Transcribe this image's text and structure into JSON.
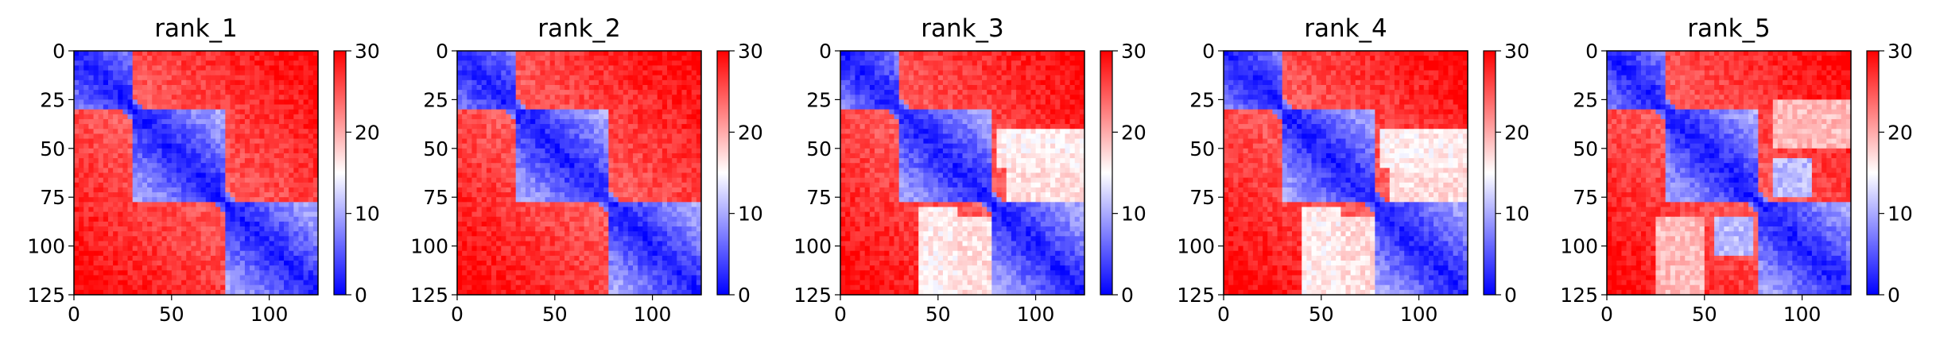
{
  "chart_data": [
    {
      "type": "heatmap",
      "title": "rank_1",
      "n": 125,
      "xticks": [
        0,
        50,
        100
      ],
      "yticks": [
        0,
        25,
        50,
        75,
        100,
        125
      ],
      "xlim": [
        0,
        125
      ],
      "ylim": [
        125,
        0
      ],
      "colorbar": {
        "min": 0,
        "max": 30,
        "ticks": [
          0,
          10,
          20,
          30
        ]
      },
      "colormap": [
        "#0000ff",
        "#ffffff",
        "#ff0000"
      ],
      "domains": [
        [
          0,
          30
        ],
        [
          30,
          78
        ],
        [
          78,
          125
        ]
      ],
      "pattern": "strong-offdiag"
    },
    {
      "type": "heatmap",
      "title": "rank_2",
      "n": 125,
      "xticks": [
        0,
        50,
        100
      ],
      "yticks": [
        0,
        25,
        50,
        75,
        100,
        125
      ],
      "xlim": [
        0,
        125
      ],
      "ylim": [
        125,
        0
      ],
      "colorbar": {
        "min": 0,
        "max": 30,
        "ticks": [
          0,
          10,
          20,
          30
        ]
      },
      "colormap": [
        "#0000ff",
        "#ffffff",
        "#ff0000"
      ],
      "domains": [
        [
          0,
          30
        ],
        [
          30,
          78
        ],
        [
          78,
          125
        ]
      ],
      "pattern": "strong-offdiag"
    },
    {
      "type": "heatmap",
      "title": "rank_3",
      "n": 125,
      "xticks": [
        0,
        50,
        100
      ],
      "yticks": [
        0,
        25,
        50,
        75,
        100,
        125
      ],
      "xlim": [
        0,
        125
      ],
      "ylim": [
        125,
        0
      ],
      "colorbar": {
        "min": 0,
        "max": 30,
        "ticks": [
          0,
          10,
          20,
          30
        ]
      },
      "colormap": [
        "#0000ff",
        "#ffffff",
        "#ff0000"
      ],
      "domains": [
        [
          0,
          30
        ],
        [
          30,
          78
        ],
        [
          78,
          125
        ]
      ],
      "pattern": "pale-lower"
    },
    {
      "type": "heatmap",
      "title": "rank_4",
      "n": 125,
      "xticks": [
        0,
        50,
        100
      ],
      "yticks": [
        0,
        25,
        50,
        75,
        100,
        125
      ],
      "xlim": [
        0,
        125
      ],
      "ylim": [
        125,
        0
      ],
      "colorbar": {
        "min": 0,
        "max": 30,
        "ticks": [
          0,
          10,
          20,
          30
        ]
      },
      "colormap": [
        "#0000ff",
        "#ffffff",
        "#ff0000"
      ],
      "domains": [
        [
          0,
          30
        ],
        [
          30,
          78
        ],
        [
          78,
          125
        ]
      ],
      "pattern": "pale-lower"
    },
    {
      "type": "heatmap",
      "title": "rank_5",
      "n": 125,
      "xticks": [
        0,
        50,
        100
      ],
      "yticks": [
        0,
        25,
        50,
        75,
        100,
        125
      ],
      "xlim": [
        0,
        125
      ],
      "ylim": [
        125,
        0
      ],
      "colorbar": {
        "min": 0,
        "max": 30,
        "ticks": [
          0,
          10,
          20,
          30
        ]
      },
      "colormap": [
        "#0000ff",
        "#ffffff",
        "#ff0000"
      ],
      "domains": [
        [
          0,
          30
        ],
        [
          30,
          78
        ],
        [
          78,
          125
        ]
      ],
      "pattern": "blue-patches"
    }
  ]
}
